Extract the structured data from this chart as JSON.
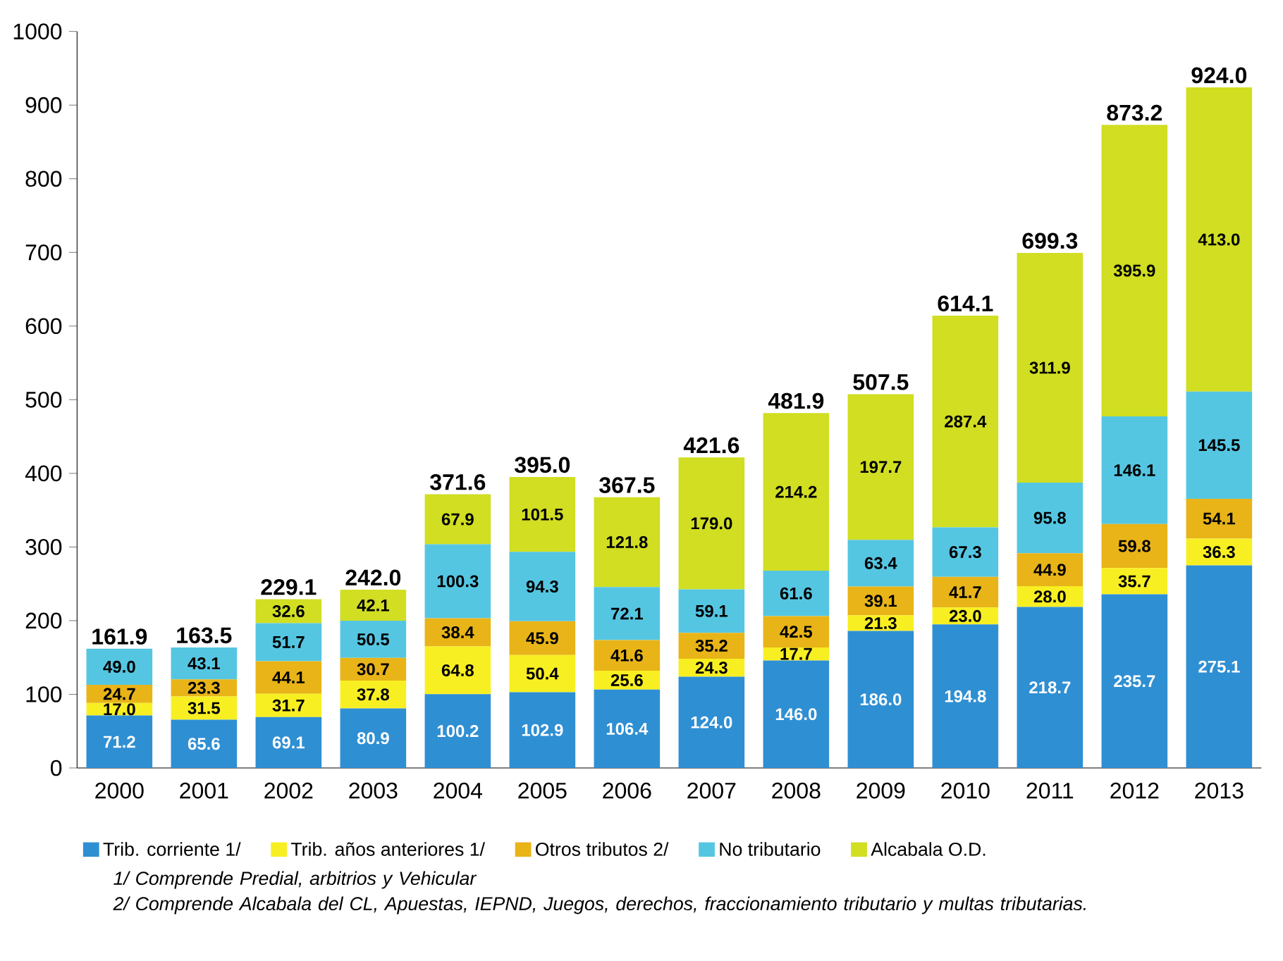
{
  "chart_data": {
    "type": "bar",
    "stacked": true,
    "legend": "bottom",
    "grid": false,
    "categories": [
      "2000",
      "2001",
      "2002",
      "2003",
      "2004",
      "2005",
      "2006",
      "2007",
      "2008",
      "2009",
      "2010",
      "2011",
      "2012",
      "2013"
    ],
    "series": [
      {
        "name": "Trib. corriente 1/",
        "color": "#2f8fd3",
        "values": [
          71.2,
          65.6,
          69.1,
          80.9,
          100.2,
          102.9,
          106.4,
          124.0,
          146.0,
          186.0,
          194.8,
          218.7,
          235.7,
          275.1
        ],
        "value_labels": [
          "71.2",
          "65.6",
          "69.1",
          "80.9",
          "100.2",
          "102.9",
          "106.4",
          "124.0",
          "146.0",
          "186.0",
          "194.8",
          "218.7",
          "235.7",
          "275.1"
        ]
      },
      {
        "name": "Trib. años anteriores 1/",
        "color": "#f8ef22",
        "values": [
          17.0,
          31.5,
          31.7,
          37.8,
          64.8,
          50.4,
          25.6,
          24.3,
          17.7,
          21.3,
          23.0,
          28.0,
          35.7,
          36.3
        ],
        "value_labels": [
          "17.0",
          "31.5",
          "31.7",
          "37.8",
          "64.8",
          "50.4",
          "25.6",
          "24.3",
          "17.7",
          "21.3",
          "23.0",
          "28.0",
          "35.7",
          "36.3"
        ]
      },
      {
        "name": "Otros tributos 2/",
        "color": "#e8b418",
        "values": [
          24.7,
          23.3,
          44.1,
          30.7,
          38.4,
          45.9,
          41.6,
          35.2,
          42.5,
          39.1,
          41.7,
          44.9,
          59.8,
          54.1
        ],
        "value_labels": [
          "24.7",
          "23.3",
          "44.1",
          "30.7",
          "38.4",
          "45.9",
          "41.6",
          "35.2",
          "42.5",
          "39.1",
          "41.7",
          "44.9",
          "59.8",
          "54.1"
        ]
      },
      {
        "name": "No tributario",
        "color": "#55c6e2",
        "values": [
          49.0,
          43.1,
          51.7,
          50.5,
          100.3,
          94.3,
          72.1,
          59.1,
          61.6,
          63.4,
          67.3,
          95.8,
          146.1,
          145.5
        ],
        "value_labels": [
          "49.0",
          "43.1",
          "51.7",
          "50.5",
          "100.3",
          "94.3",
          "72.1",
          "59.1",
          "61.6",
          "63.4",
          "67.3",
          "95.8",
          "146.1",
          "145.5"
        ]
      },
      {
        "name": "Alcabala O.D.",
        "color": "#d1de22",
        "values": [
          null,
          null,
          32.6,
          42.1,
          67.9,
          101.5,
          121.8,
          179.0,
          214.2,
          197.7,
          287.4,
          311.9,
          395.9,
          413.0
        ],
        "value_labels": [
          null,
          null,
          "32.6",
          "42.1",
          "67.9",
          "101.5",
          "121.8",
          "179.0",
          "214.2",
          "197.7",
          "287.4",
          "311.9",
          "395.9",
          "413.0"
        ]
      }
    ],
    "totals": [
      "161.9",
      "163.5",
      "229.1",
      "242.0",
      "371.6",
      "395.0",
      "367.5",
      "421.6",
      "481.9",
      "507.5",
      "614.1",
      "699.3",
      "873.2",
      "924.0"
    ],
    "ylim": [
      0,
      1000
    ],
    "yticks": [
      0,
      100,
      200,
      300,
      400,
      500,
      600,
      700,
      800,
      900,
      1000
    ],
    "annotations": [
      "1/ Comprende Predial, arbitrios y Vehicular",
      "2/ Comprende Alcabala del CL, Apuestas, IEPND, Juegos, derechos, fraccionamiento tributario y multas tributarias."
    ]
  }
}
